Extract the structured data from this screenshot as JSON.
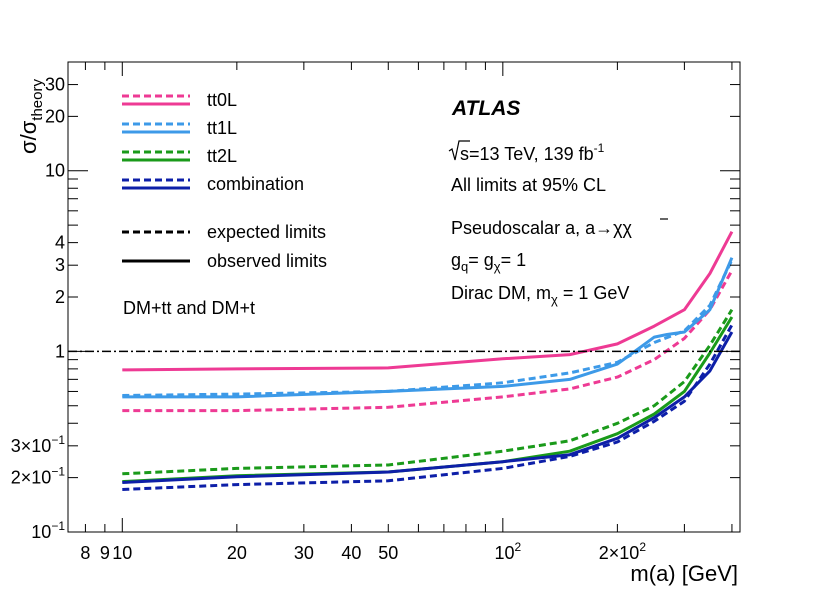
{
  "chart_data": {
    "type": "line",
    "title": "",
    "xlabel": "m(a) [GeV]",
    "ylabel": "σ/σ_theory",
    "xscale": "log",
    "yscale": "log",
    "xlim": [
      7.2,
      420
    ],
    "ylim": [
      0.1,
      40
    ],
    "grid": false,
    "x_ticks": [
      {
        "value": 8,
        "label": "8"
      },
      {
        "value": 9,
        "label": "9"
      },
      {
        "value": 10,
        "label": "10"
      },
      {
        "value": 20,
        "label": "20"
      },
      {
        "value": 30,
        "label": "30"
      },
      {
        "value": 40,
        "label": "40"
      },
      {
        "value": 50,
        "label": "50"
      },
      {
        "value": 100,
        "label": "10",
        "sup": "2"
      },
      {
        "value": 200,
        "label": "2×10",
        "sup": "2"
      }
    ],
    "y_ticks": [
      {
        "value": 0.1,
        "label": "10",
        "sup": "−1"
      },
      {
        "value": 0.2,
        "label": "2×10",
        "sup": "−1"
      },
      {
        "value": 0.3,
        "label": "3×10",
        "sup": "−1"
      },
      {
        "value": 1,
        "label": "1"
      },
      {
        "value": 2,
        "label": "2"
      },
      {
        "value": 3,
        "label": "3"
      },
      {
        "value": 4,
        "label": "4"
      },
      {
        "value": 10,
        "label": "10"
      },
      {
        "value": 20,
        "label": "20"
      },
      {
        "value": 30,
        "label": "30"
      }
    ],
    "reference_line": {
      "y": 1,
      "style": "dash-dot",
      "color": "#000000"
    },
    "series": [
      {
        "name": "tt0L expected",
        "channel": "tt0L",
        "kind": "expected",
        "color": "#ee3a94",
        "x": [
          10,
          20,
          50,
          100,
          150,
          200,
          250,
          300,
          350,
          400
        ],
        "y": [
          0.47,
          0.47,
          0.49,
          0.56,
          0.62,
          0.72,
          0.9,
          1.18,
          1.7,
          2.8
        ]
      },
      {
        "name": "tt0L observed",
        "channel": "tt0L",
        "kind": "observed",
        "color": "#ee3a94",
        "x": [
          10,
          20,
          50,
          100,
          150,
          200,
          250,
          300,
          350,
          400
        ],
        "y": [
          0.79,
          0.8,
          0.81,
          0.91,
          0.96,
          1.1,
          1.38,
          1.7,
          2.7,
          4.6
        ]
      },
      {
        "name": "tt1L expected",
        "channel": "tt1L",
        "kind": "expected",
        "color": "#3d9ae8",
        "x": [
          10,
          20,
          50,
          100,
          150,
          200,
          250,
          300,
          350,
          400
        ],
        "y": [
          0.57,
          0.58,
          0.6,
          0.67,
          0.76,
          0.87,
          1.12,
          1.3,
          1.8,
          3.2
        ]
      },
      {
        "name": "tt1L observed",
        "channel": "tt1L",
        "kind": "observed",
        "color": "#3d9ae8",
        "x": [
          10,
          20,
          50,
          100,
          150,
          200,
          250,
          270,
          300,
          350,
          400
        ],
        "y": [
          0.56,
          0.56,
          0.6,
          0.64,
          0.7,
          0.85,
          1.2,
          1.24,
          1.28,
          1.7,
          3.3
        ]
      },
      {
        "name": "tt2L expected",
        "channel": "tt2L",
        "kind": "expected",
        "color": "#1a9a1a",
        "x": [
          10,
          20,
          50,
          100,
          150,
          200,
          250,
          300,
          350,
          400
        ],
        "y": [
          0.21,
          0.225,
          0.235,
          0.28,
          0.32,
          0.4,
          0.5,
          0.68,
          1.08,
          1.7
        ]
      },
      {
        "name": "tt2L observed",
        "channel": "tt2L",
        "kind": "observed",
        "color": "#1a9a1a",
        "x": [
          10,
          20,
          50,
          100,
          150,
          200,
          250,
          300,
          350,
          400
        ],
        "y": [
          0.19,
          0.205,
          0.215,
          0.245,
          0.28,
          0.35,
          0.45,
          0.6,
          0.98,
          1.55
        ]
      },
      {
        "name": "combination expected",
        "channel": "combination",
        "kind": "expected",
        "color": "#0d1fa8",
        "x": [
          10,
          20,
          50,
          100,
          150,
          200,
          250,
          300,
          350,
          400
        ],
        "y": [
          0.172,
          0.183,
          0.192,
          0.225,
          0.262,
          0.315,
          0.41,
          0.53,
          0.85,
          1.4
        ]
      },
      {
        "name": "combination observed",
        "channel": "combination",
        "kind": "observed",
        "color": "#0d1fa8",
        "x": [
          10,
          20,
          50,
          100,
          150,
          200,
          250,
          300,
          350,
          400
        ],
        "y": [
          0.188,
          0.202,
          0.215,
          0.245,
          0.268,
          0.33,
          0.43,
          0.56,
          0.78,
          1.28
        ]
      }
    ],
    "legend": {
      "placement": "top-left",
      "entries": [
        {
          "label": "tt0L",
          "color": "#ee3a94"
        },
        {
          "label": "tt1L",
          "color": "#3d9ae8"
        },
        {
          "label": "tt2L",
          "color": "#1a9a1a"
        },
        {
          "label": "combination",
          "color": "#0d1fa8"
        }
      ],
      "style_entries": [
        {
          "label": "expected limits",
          "style": "dashed"
        },
        {
          "label": "observed limits",
          "style": "solid"
        }
      ]
    },
    "annotations": {
      "experiment": "ATLAS",
      "energy_prefix": "s=13 TeV, 139 fb",
      "energy_sup": "-1",
      "cl": "All limits at 95% CL",
      "model": "Pseudoscalar a, a→χχ",
      "couplings": "g",
      "couplings_sub1": "q",
      "couplings_mid": "= g",
      "couplings_sub2": "χ",
      "couplings_end": "= 1",
      "dm": "Dirac DM, m",
      "dm_sub": "χ",
      "dm_end": " = 1 GeV",
      "channels": "DM+tt and DM+t"
    }
  }
}
